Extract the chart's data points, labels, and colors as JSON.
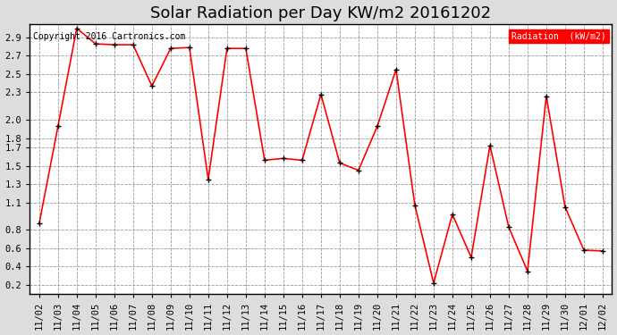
{
  "title": "Solar Radiation per Day KW/m2 20161202",
  "copyright_text": "Copyright 2016 Cartronics.com",
  "legend_label": "Radiation  (kW/m2)",
  "dates": [
    "11/02",
    "11/03",
    "11/04",
    "11/05",
    "11/06",
    "11/07",
    "11/08",
    "11/09",
    "11/10",
    "11/11",
    "11/12",
    "11/13",
    "11/14",
    "11/15",
    "11/16",
    "11/17",
    "11/18",
    "11/19",
    "11/20",
    "11/21",
    "11/22",
    "11/23",
    "11/24",
    "11/25",
    "11/26",
    "11/27",
    "11/28",
    "11/29",
    "11/30",
    "12/01",
    "12/02"
  ],
  "values": [
    0.87,
    1.93,
    3.0,
    2.83,
    2.82,
    2.82,
    2.37,
    2.78,
    2.79,
    1.35,
    2.78,
    2.78,
    1.56,
    1.58,
    1.56,
    2.28,
    1.53,
    1.45,
    1.93,
    2.55,
    1.07,
    0.22,
    0.97,
    0.5,
    1.72,
    0.83,
    0.35,
    2.26,
    1.05,
    0.58,
    0.57
  ],
  "line_color": "red",
  "marker": "+",
  "marker_color": "black",
  "marker_size": 5,
  "line_width": 1.2,
  "ylim": [
    0.1,
    3.05
  ],
  "ytick_positions": [
    0.2,
    0.4,
    0.6,
    0.8,
    1.1,
    1.3,
    1.5,
    1.7,
    1.8,
    2.0,
    2.3,
    2.5,
    2.7,
    2.9
  ],
  "ytick_labels": [
    "0.2",
    "0.4",
    "0.6",
    "0.8",
    "1.1",
    "1.3",
    "1.5",
    "1.7",
    "1.8",
    "2.0",
    "2.3",
    "2.5",
    "2.7",
    "2.9"
  ],
  "grid_color": "#999999",
  "grid_style": "dashed",
  "bg_color": "white",
  "outer_bg": "#dddddd",
  "legend_bg": "red",
  "legend_text_color": "white",
  "title_fontsize": 13,
  "tick_fontsize": 7.5,
  "copyright_fontsize": 7,
  "fig_width": 6.9,
  "fig_height": 3.75,
  "dpi": 100
}
